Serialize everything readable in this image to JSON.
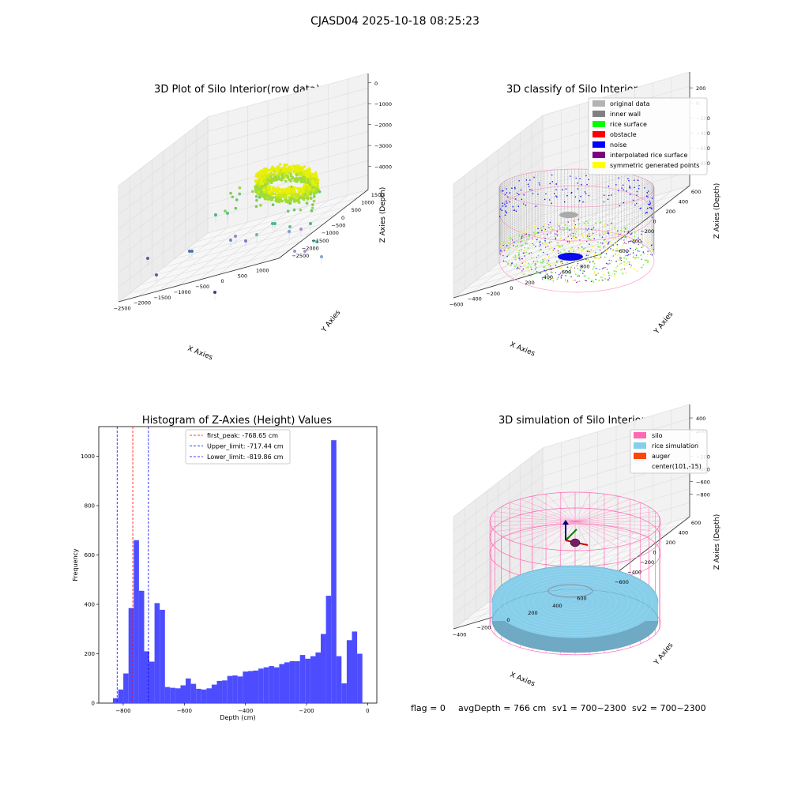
{
  "figure": {
    "suptitle": "CJASD04 2025-10-18 08:25:23",
    "footer": {
      "flag": "flag = 0",
      "avg_depth": "avgDepth = 766 cm",
      "sv1": "sv1 = 700~2300",
      "sv2": "sv2 = 700~2300"
    }
  },
  "colors": {
    "hist_bar": "#4d4dff",
    "red_line": "#ff0000",
    "blue_line": "#0000ff",
    "pane": "#f2f2f2",
    "grid": "#dddddd",
    "silo": "#ff69b4",
    "rice": "#87ceeb",
    "auger": "#ff4500"
  },
  "chart_data": [
    {
      "type": "scatter",
      "title": "3D Plot of Silo Interior(row data)",
      "xlabel": "X Axies",
      "ylabel": "Y Axies",
      "zlabel": "Z Axies (Depth)",
      "x_ticks": [
        "−2500",
        "−2000",
        "−1500",
        "−1000",
        "−500",
        "0",
        "500",
        "1000"
      ],
      "y_ticks": [
        "−2500",
        "−2000",
        "−1500",
        "−1000",
        "−500",
        "0",
        "500",
        "1000",
        "1500"
      ],
      "z_ticks": [
        "0",
        "−1000",
        "−2000",
        "−3000",
        "−4000"
      ]
    },
    {
      "type": "scatter",
      "title": "3D classify of Silo Interior",
      "xlabel": "X Axies",
      "ylabel": "Y Axies",
      "zlabel": "Z Axies (Depth)",
      "x_ticks": [
        "−600",
        "−400",
        "−200",
        "0",
        "200",
        "400",
        "600",
        "800"
      ],
      "y_ticks": [
        "−600",
        "−400",
        "−200",
        "0",
        "200",
        "400",
        "600"
      ],
      "z_ticks": [
        "200",
        "0",
        "−200",
        "−400",
        "−600",
        "−800"
      ],
      "legend": [
        {
          "label": "original data",
          "color": "#b3b3b3"
        },
        {
          "label": "inner wall",
          "color": "#808080"
        },
        {
          "label": "rice surface",
          "color": "#00ff00"
        },
        {
          "label": "obstacle",
          "color": "#ff0000"
        },
        {
          "label": "noise",
          "color": "#0000ff"
        },
        {
          "label": "interpolated rice surface",
          "color": "#800080"
        },
        {
          "label": "symmetric generated points",
          "color": "#ffff00"
        }
      ]
    },
    {
      "type": "bar",
      "title": "Histogram of Z-Axies (Height) Values",
      "xlabel": "Depth (cm)",
      "ylabel": "Frequency",
      "xlim": [
        -880,
        30
      ],
      "ylim": [
        0,
        1120
      ],
      "x_ticks": [
        -800,
        -600,
        -400,
        -200,
        0
      ],
      "y_ticks": [
        0,
        200,
        400,
        600,
        800,
        1000
      ],
      "bin_width": 17,
      "bins": [
        {
          "x": -825,
          "v": 20
        },
        {
          "x": -808,
          "v": 55
        },
        {
          "x": -791,
          "v": 120
        },
        {
          "x": -774,
          "v": 385
        },
        {
          "x": -757,
          "v": 660
        },
        {
          "x": -740,
          "v": 455
        },
        {
          "x": -723,
          "v": 210
        },
        {
          "x": -706,
          "v": 168
        },
        {
          "x": -689,
          "v": 405
        },
        {
          "x": -672,
          "v": 378
        },
        {
          "x": -655,
          "v": 65
        },
        {
          "x": -638,
          "v": 62
        },
        {
          "x": -621,
          "v": 60
        },
        {
          "x": -604,
          "v": 72
        },
        {
          "x": -587,
          "v": 100
        },
        {
          "x": -570,
          "v": 78
        },
        {
          "x": -553,
          "v": 58
        },
        {
          "x": -536,
          "v": 55
        },
        {
          "x": -519,
          "v": 60
        },
        {
          "x": -502,
          "v": 75
        },
        {
          "x": -485,
          "v": 90
        },
        {
          "x": -468,
          "v": 92
        },
        {
          "x": -451,
          "v": 110
        },
        {
          "x": -434,
          "v": 112
        },
        {
          "x": -417,
          "v": 108
        },
        {
          "x": -400,
          "v": 128
        },
        {
          "x": -383,
          "v": 130
        },
        {
          "x": -366,
          "v": 132
        },
        {
          "x": -349,
          "v": 140
        },
        {
          "x": -332,
          "v": 145
        },
        {
          "x": -315,
          "v": 150
        },
        {
          "x": -298,
          "v": 145
        },
        {
          "x": -281,
          "v": 158
        },
        {
          "x": -264,
          "v": 165
        },
        {
          "x": -247,
          "v": 170
        },
        {
          "x": -230,
          "v": 170
        },
        {
          "x": -213,
          "v": 195
        },
        {
          "x": -196,
          "v": 180
        },
        {
          "x": -179,
          "v": 190
        },
        {
          "x": -162,
          "v": 205
        },
        {
          "x": -145,
          "v": 280
        },
        {
          "x": -128,
          "v": 435
        },
        {
          "x": -111,
          "v": 1065
        },
        {
          "x": -94,
          "v": 190
        },
        {
          "x": -77,
          "v": 80
        },
        {
          "x": -60,
          "v": 255
        },
        {
          "x": -43,
          "v": 290
        },
        {
          "x": -26,
          "v": 200
        }
      ],
      "lines": [
        {
          "label": "first_peak: -768.65 cm",
          "x": -768.65,
          "color": "#ff0000"
        },
        {
          "label": "Upper_limit: -717.44 cm",
          "x": -717.44,
          "color": "#0000ff"
        },
        {
          "label": "Lower_limit: -819.86 cm",
          "x": -819.86,
          "color": "#0000ff"
        }
      ]
    },
    {
      "type": "scatter",
      "title": "3D simulation of Silo Interior",
      "xlabel": "X Axies",
      "ylabel": "Y Axies",
      "zlabel": "Z Axies (Depth)",
      "x_ticks": [
        "−400",
        "−200",
        "0",
        "200",
        "400",
        "600"
      ],
      "y_ticks": [
        "−600",
        "−400",
        "−200",
        "0",
        "200",
        "400",
        "600"
      ],
      "z_ticks": [
        "400",
        "200",
        "0",
        "−200",
        "−400",
        "−600",
        "−800"
      ],
      "legend": [
        {
          "label": "silo",
          "color": "#ff69b4"
        },
        {
          "label": "rice simulation",
          "color": "#87ceeb"
        },
        {
          "label": "auger",
          "color": "#ff4500"
        },
        {
          "label": "center(101,-15)",
          "color": ""
        }
      ]
    }
  ]
}
